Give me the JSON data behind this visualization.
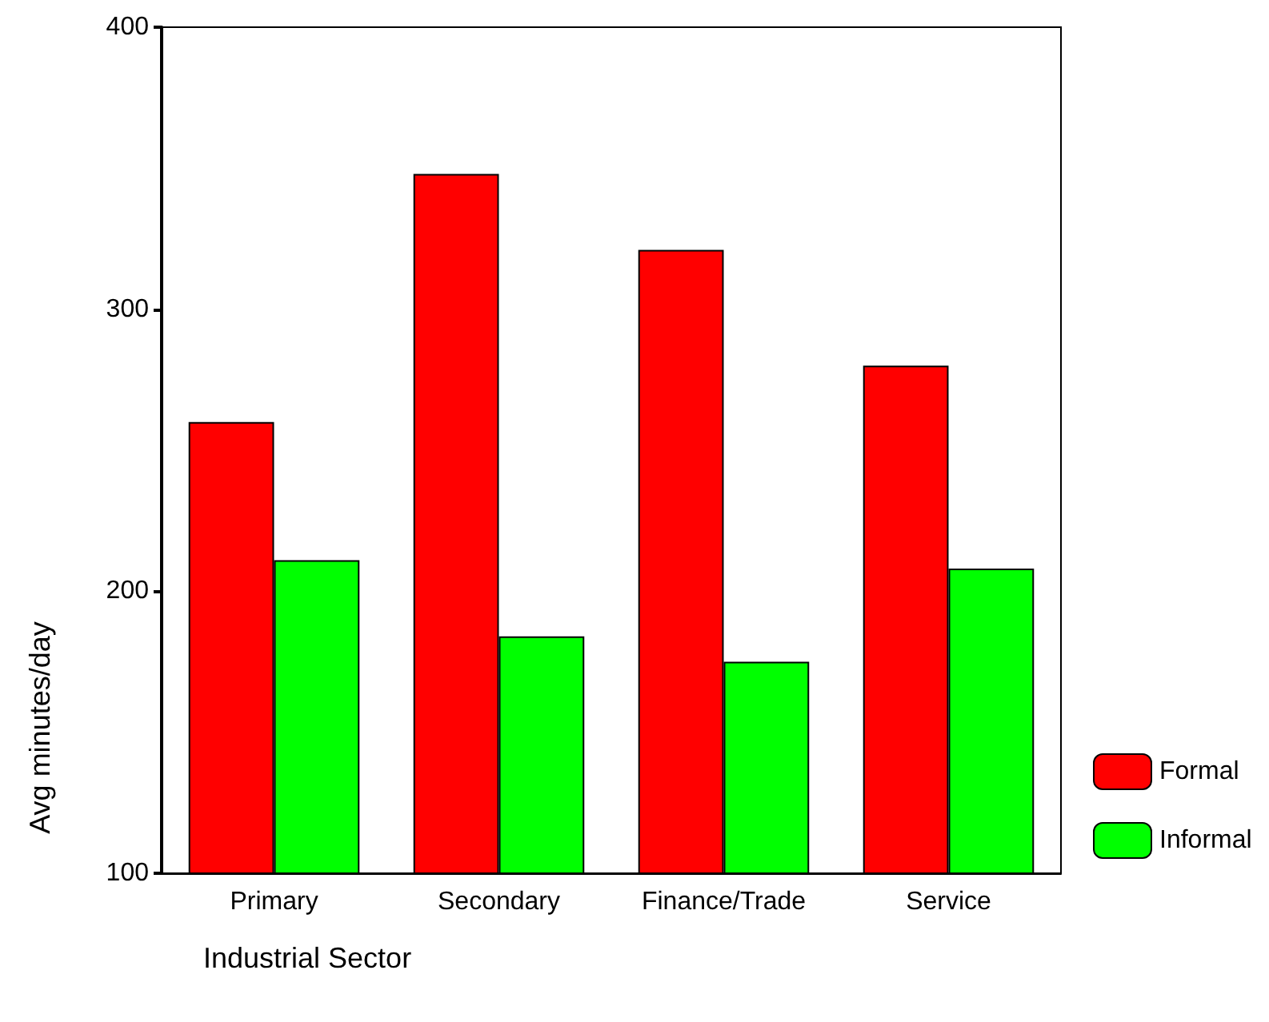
{
  "chart_data": {
    "type": "bar",
    "xlabel": "Industrial Sector",
    "ylabel": "Avg minutes/day",
    "categories": [
      "Primary",
      "Secondary",
      "Finance/Trade",
      "Service"
    ],
    "series": [
      {
        "name": "Formal",
        "color": "#ff0000",
        "values": [
          260,
          348,
          321,
          280
        ]
      },
      {
        "name": "Informal",
        "color": "#00ff00",
        "values": [
          211,
          184,
          175,
          208
        ]
      }
    ],
    "ylim": [
      100,
      400
    ],
    "yticks": [
      100,
      200,
      300,
      400
    ],
    "grid": false,
    "legend": "bottom right"
  }
}
